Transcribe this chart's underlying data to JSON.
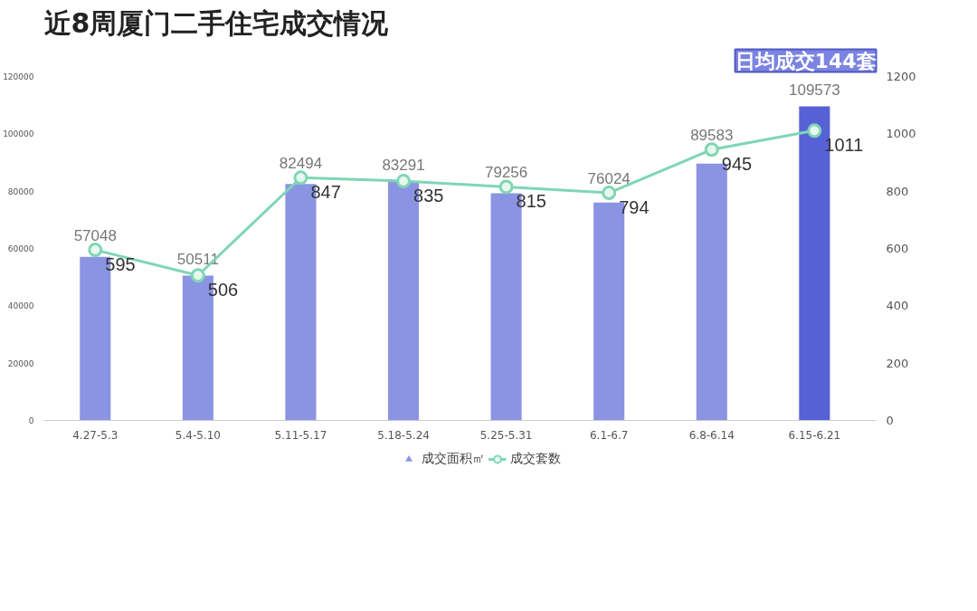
{
  "chart_data": {
    "type": "bar",
    "title": "近8周厦门二手住宅成交情况",
    "categories": [
      "4.27-5.3",
      "5.4-5.10",
      "5.11-5.17",
      "5.18-5.24",
      "5.25-5.31",
      "6.1-6.7",
      "6.8-6.14",
      "6.15-6.21"
    ],
    "series": [
      {
        "name": "成交面积㎡",
        "colors": [
          "#8b93e3",
          "#8b93e3",
          "#8b93e3",
          "#8b93e3",
          "#8b93e3",
          "#8b93e3",
          "#8b93e3",
          "#5661d6"
        ],
        "values": [
          57048,
          50511,
          82494,
          83291,
          79256,
          76024,
          89583,
          109573
        ]
      },
      {
        "name": "成交套数",
        "type": "line",
        "axis": "y2",
        "color": "#7fd6b4",
        "marker": "circle",
        "values": [
          595,
          506,
          847,
          835,
          815,
          794,
          945,
          1011
        ]
      }
    ],
    "ylim": [
      0,
      120000
    ],
    "yticks": [
      0,
      20000,
      40000,
      60000,
      80000,
      100000,
      120000
    ],
    "y2lim": [
      0,
      1200
    ],
    "y2ticks": [
      0,
      200,
      400,
      600,
      800,
      1000,
      1200
    ],
    "data_labels": true,
    "grid": false,
    "legend": "bottom",
    "annotations": [
      "日均成交144套"
    ]
  }
}
